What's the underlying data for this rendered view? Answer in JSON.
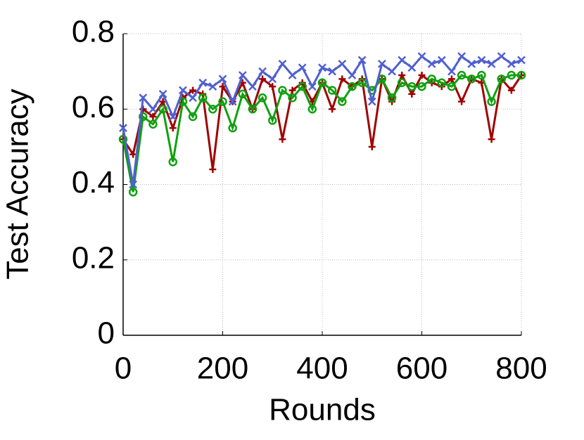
{
  "chart_data": {
    "type": "line",
    "x_label": "Rounds",
    "y_label": "Test Accuracy",
    "x": [
      0,
      20,
      40,
      60,
      80,
      100,
      120,
      140,
      160,
      180,
      200,
      220,
      240,
      260,
      280,
      300,
      320,
      340,
      360,
      380,
      400,
      420,
      440,
      460,
      480,
      500,
      520,
      540,
      560,
      580,
      600,
      620,
      640,
      660,
      680,
      700,
      720,
      740,
      760,
      780,
      800
    ],
    "series": [
      {
        "color": "#a00000",
        "marker": "plus",
        "values": [
          0.52,
          0.48,
          0.6,
          0.58,
          0.62,
          0.55,
          0.63,
          0.65,
          0.64,
          0.44,
          0.66,
          0.62,
          0.67,
          0.6,
          0.68,
          0.66,
          0.52,
          0.65,
          0.67,
          0.62,
          0.67,
          0.6,
          0.68,
          0.66,
          0.68,
          0.5,
          0.68,
          0.62,
          0.69,
          0.64,
          0.69,
          0.67,
          0.66,
          0.68,
          0.62,
          0.68,
          0.67,
          0.52,
          0.68,
          0.65,
          0.69
        ]
      },
      {
        "color": "#10a010",
        "marker": "circle",
        "values": [
          0.52,
          0.38,
          0.58,
          0.56,
          0.6,
          0.46,
          0.62,
          0.58,
          0.63,
          0.6,
          0.62,
          0.55,
          0.64,
          0.6,
          0.63,
          0.57,
          0.65,
          0.63,
          0.66,
          0.6,
          0.67,
          0.65,
          0.62,
          0.66,
          0.67,
          0.65,
          0.68,
          0.63,
          0.67,
          0.66,
          0.66,
          0.68,
          0.67,
          0.66,
          0.69,
          0.68,
          0.69,
          0.62,
          0.68,
          0.69,
          0.69
        ]
      },
      {
        "color": "#5060d0",
        "marker": "cross",
        "values": [
          0.55,
          0.4,
          0.63,
          0.6,
          0.64,
          0.58,
          0.65,
          0.63,
          0.67,
          0.66,
          0.68,
          0.62,
          0.69,
          0.66,
          0.7,
          0.68,
          0.72,
          0.69,
          0.71,
          0.66,
          0.71,
          0.7,
          0.72,
          0.69,
          0.73,
          0.62,
          0.72,
          0.7,
          0.73,
          0.71,
          0.74,
          0.72,
          0.73,
          0.7,
          0.74,
          0.72,
          0.73,
          0.72,
          0.74,
          0.72,
          0.73
        ]
      }
    ],
    "xlim": [
      0,
      800
    ],
    "xticks": [
      0,
      200,
      400,
      600,
      800
    ],
    "ylim": [
      0,
      0.8
    ],
    "yticks": [
      0,
      0.2,
      0.4,
      0.6,
      0.8
    ],
    "grid": true
  }
}
